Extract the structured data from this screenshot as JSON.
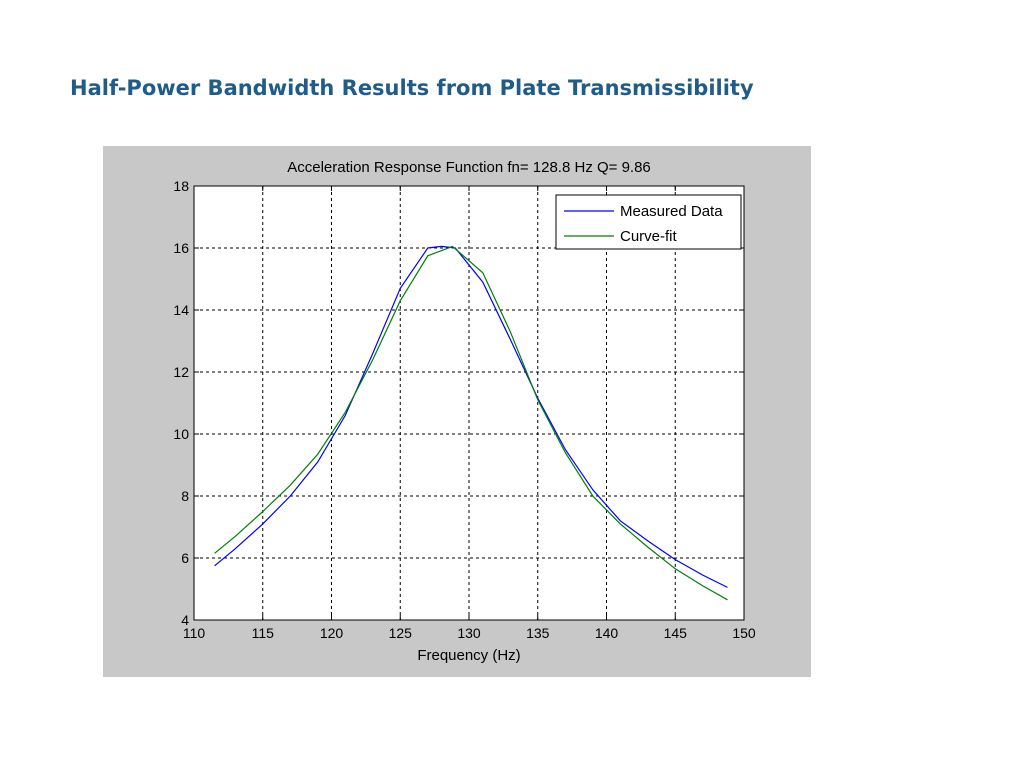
{
  "page": {
    "title": "Half-Power Bandwidth Results from Plate Transmissibility"
  },
  "colors": {
    "title": "#1f5c8a",
    "figure_bg": "#c8c8c8",
    "axes_bg": "#ffffff",
    "measured": "#0000ff",
    "fit": "#008000"
  },
  "chart_data": {
    "type": "line",
    "title": "Acceleration Response Function  fn=  128.8 Hz  Q=  9.86",
    "xlabel": "Frequency (Hz)",
    "ylabel": "",
    "xlim": [
      110,
      150
    ],
    "ylim": [
      4,
      18
    ],
    "xticks": [
      110,
      115,
      120,
      125,
      130,
      135,
      140,
      145,
      150
    ],
    "yticks": [
      4,
      6,
      8,
      10,
      12,
      14,
      16,
      18
    ],
    "grid": true,
    "legend": {
      "position": "top-right"
    },
    "series": [
      {
        "name": "Measured Data",
        "color": "#0000ff",
        "x": [
          111.5,
          113,
          115,
          117,
          119,
          121,
          123,
          125,
          127,
          128,
          129,
          131,
          133,
          135,
          137,
          139,
          141,
          143,
          145,
          147,
          148.8
        ],
        "y": [
          5.75,
          6.3,
          7.1,
          8.0,
          9.1,
          10.6,
          12.6,
          14.7,
          16.0,
          16.05,
          16.0,
          14.9,
          13.05,
          11.15,
          9.5,
          8.2,
          7.2,
          6.55,
          5.95,
          5.45,
          5.05
        ]
      },
      {
        "name": "Curve-fit",
        "color": "#008000",
        "x": [
          111.5,
          113,
          115,
          117,
          119,
          121,
          123,
          125,
          127,
          128.8,
          131,
          133,
          135,
          137,
          139,
          141,
          143,
          145,
          147,
          148.8
        ],
        "y": [
          6.15,
          6.7,
          7.5,
          8.35,
          9.35,
          10.7,
          12.4,
          14.3,
          15.75,
          16.05,
          15.2,
          13.3,
          11.1,
          9.4,
          8.0,
          7.1,
          6.35,
          5.65,
          5.1,
          4.65
        ]
      }
    ]
  }
}
